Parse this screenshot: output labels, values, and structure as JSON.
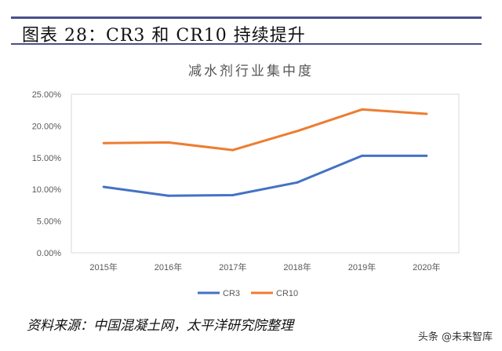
{
  "figure_title": "图表 28：CR3 和 CR10 持续提升",
  "source": "资料来源：中国混凝土网，太平洋研究院整理",
  "watermark": "头条 @未来智库",
  "chart_data": {
    "type": "line",
    "title": "减水剂行业集中度",
    "categories": [
      "2015年",
      "2016年",
      "2017年",
      "2018年",
      "2019年",
      "2020年"
    ],
    "series": [
      {
        "name": "CR3",
        "color": "#4472c4",
        "values": [
          10.4,
          9.0,
          9.1,
          11.1,
          15.3,
          15.3
        ]
      },
      {
        "name": "CR10",
        "color": "#ed7d31",
        "values": [
          17.3,
          17.4,
          16.2,
          19.2,
          22.6,
          21.9
        ]
      }
    ],
    "yticks": [
      "0.00%",
      "5.00%",
      "10.00%",
      "15.00%",
      "20.00%",
      "25.00%"
    ],
    "ylim": [
      0,
      25
    ],
    "grid": false,
    "legend": "bottom"
  }
}
